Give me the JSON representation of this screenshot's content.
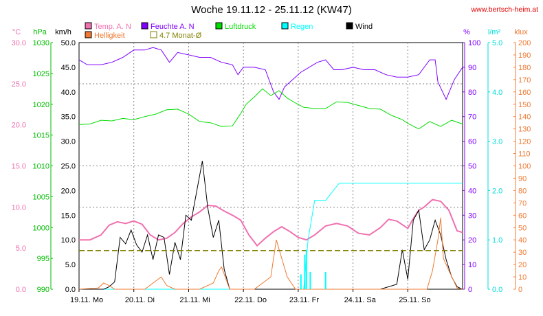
{
  "chart_data": {
    "type": "line",
    "title": "Woche 19.11.12 - 25.11.12 (KW47)",
    "source": "www.bertsch-heim.at",
    "legend": [
      {
        "name": "Temp. A. N",
        "color": "#f070b0",
        "style": "box"
      },
      {
        "name": "Feuchte A. N",
        "color": "#7f00ff",
        "style": "box"
      },
      {
        "name": "Luftdruck",
        "color": "#00dd00",
        "style": "box"
      },
      {
        "name": "Regen",
        "color": "#00ffff",
        "style": "box"
      },
      {
        "name": "Wind",
        "color": "#000000",
        "style": "box"
      },
      {
        "name": "Helligkeit",
        "color": "#f07830",
        "style": "box"
      },
      {
        "name": "4.7 Monat-Ø",
        "color": "#808000",
        "style": "outline"
      }
    ],
    "axes": {
      "temp": {
        "unit": "°C",
        "ticks": [
          "30.0",
          "25.0",
          "20.0",
          "15.0",
          "10.0",
          "5.0",
          "0.0"
        ],
        "min": 0,
        "max": 30,
        "color": "#f070b0"
      },
      "pressure": {
        "unit": "hPa",
        "ticks": [
          "1030",
          "1025",
          "1020",
          "1015",
          "1010",
          "1005",
          "1000",
          "995",
          "990"
        ],
        "min": 990,
        "max": 1030,
        "color": "#00bb00"
      },
      "wind": {
        "unit": "km/h",
        "ticks": [
          "50.0",
          "45.0",
          "40.0",
          "35.0",
          "30.0",
          "25.0",
          "20.0",
          "15.0",
          "10.0",
          "5.0",
          "0.0"
        ],
        "min": 0,
        "max": 50,
        "color": "#000000"
      },
      "humidity": {
        "unit": "%",
        "ticks": [
          "100",
          "90",
          "80",
          "70",
          "60",
          "50",
          "40",
          "30",
          "20",
          "10",
          "0"
        ],
        "min": 0,
        "max": 100,
        "color": "#7f00ff"
      },
      "rain": {
        "unit": "l/m²",
        "ticks": [
          "5.0",
          "4.0",
          "3.0",
          "2.0",
          "1.0",
          "0.0"
        ],
        "min": 0,
        "max": 5,
        "color": "#00dddd"
      },
      "light": {
        "unit": "klux",
        "ticks": [
          "200",
          "190",
          "180",
          "170",
          "160",
          "150",
          "140",
          "130",
          "120",
          "110",
          "100",
          "90",
          "80",
          "70",
          "60",
          "50",
          "40",
          "30",
          "20",
          "10",
          "0"
        ],
        "min": 0,
        "max": 200,
        "color": "#f07830"
      }
    },
    "x_labels": [
      "19.11. Mo",
      "20.11. Di",
      "21.11. Mi",
      "22.11. Do",
      "23.11. Fr",
      "24.11. Sa",
      "25.11. So"
    ],
    "x_range_days": [
      0,
      7
    ],
    "monthly_avg_temp": 4.7,
    "series": [
      {
        "name": "Temp. A. N",
        "axis": "temp",
        "x": [
          0,
          0.2,
          0.4,
          0.55,
          0.7,
          0.85,
          1.0,
          1.15,
          1.3,
          1.45,
          1.6,
          1.75,
          1.9,
          2.05,
          2.2,
          2.35,
          2.5,
          2.65,
          2.8,
          2.95,
          3.1,
          3.25,
          3.4,
          3.55,
          3.7,
          3.85,
          4.0,
          4.15,
          4.3,
          4.5,
          4.7,
          4.9,
          5.1,
          5.3,
          5.5,
          5.65,
          5.8,
          6.0,
          6.1,
          6.2,
          6.3,
          6.45,
          6.6,
          6.75,
          6.9,
          7.0
        ],
        "y": [
          6.0,
          6.0,
          6.6,
          7.8,
          8.2,
          8.0,
          8.3,
          7.9,
          6.6,
          6.0,
          6.2,
          6.9,
          8.0,
          8.8,
          9.4,
          10.2,
          10.1,
          9.5,
          9.0,
          8.4,
          6.6,
          5.3,
          6.2,
          7.0,
          7.6,
          7.0,
          6.3,
          6.0,
          6.6,
          7.7,
          8.0,
          7.7,
          6.8,
          6.6,
          7.5,
          8.5,
          8.3,
          7.4,
          8.6,
          9.6,
          10.0,
          10.9,
          10.7,
          9.6,
          7.1,
          6.9
        ]
      },
      {
        "name": "Feuchte A. N",
        "axis": "humidity",
        "x": [
          0,
          0.15,
          0.4,
          0.6,
          0.8,
          1.0,
          1.2,
          1.35,
          1.5,
          1.65,
          1.8,
          2.0,
          2.2,
          2.4,
          2.6,
          2.8,
          2.9,
          3.0,
          3.2,
          3.4,
          3.55,
          3.65,
          3.75,
          3.85,
          3.95,
          4.05,
          4.2,
          4.35,
          4.5,
          4.65,
          4.8,
          5.0,
          5.2,
          5.4,
          5.6,
          5.8,
          6.0,
          6.2,
          6.4,
          6.5,
          6.55,
          6.7,
          6.85,
          7.0
        ],
        "y": [
          93,
          91,
          91,
          92,
          94,
          97,
          97,
          98,
          97,
          92,
          96,
          95,
          94,
          94,
          92,
          91,
          87,
          90,
          90,
          89,
          80,
          77,
          82,
          84,
          86,
          88,
          90,
          92,
          93,
          89,
          89,
          90,
          89,
          89,
          87,
          86,
          86,
          87,
          93,
          93,
          84,
          77,
          85,
          90
        ]
      },
      {
        "name": "Luftdruck",
        "axis": "pressure",
        "x": [
          0,
          0.2,
          0.4,
          0.6,
          0.8,
          1.0,
          1.2,
          1.4,
          1.6,
          1.8,
          2.0,
          2.2,
          2.4,
          2.6,
          2.8,
          2.95,
          3.05,
          3.2,
          3.35,
          3.5,
          3.65,
          3.8,
          3.95,
          4.1,
          4.3,
          4.5,
          4.7,
          4.9,
          5.1,
          5.3,
          5.5,
          5.7,
          5.9,
          6.0,
          6.2,
          6.4,
          6.6,
          6.8,
          7.0
        ],
        "y": [
          1016.7,
          1016.8,
          1017.4,
          1017.3,
          1017.7,
          1017.5,
          1018.0,
          1018.4,
          1019.1,
          1019.2,
          1018.4,
          1017.2,
          1017.0,
          1016.4,
          1016.5,
          1018.5,
          1020.0,
          1021.2,
          1022.5,
          1021.4,
          1022.2,
          1021.0,
          1020.2,
          1019.5,
          1019.3,
          1019.3,
          1020.4,
          1020.3,
          1019.8,
          1019.3,
          1019.2,
          1018.2,
          1017.5,
          1016.9,
          1016.0,
          1017.2,
          1016.4,
          1017.4,
          1016.8
        ]
      },
      {
        "name": "Regen",
        "axis": "rain",
        "x": [
          0,
          4.1,
          4.18,
          4.3,
          4.5,
          4.75,
          5.0,
          6.0,
          7.0
        ],
        "y": [
          0,
          0,
          1.0,
          1.8,
          1.8,
          2.15,
          2.15,
          2.15,
          2.15
        ]
      },
      {
        "name": "Wind",
        "axis": "wind",
        "x": [
          0,
          0.45,
          0.55,
          0.65,
          0.75,
          0.85,
          0.95,
          1.05,
          1.15,
          1.25,
          1.35,
          1.45,
          1.55,
          1.65,
          1.75,
          1.85,
          1.95,
          2.05,
          2.15,
          2.25,
          2.35,
          2.45,
          2.55,
          2.65,
          2.75,
          2.85,
          3.0,
          3.5,
          4.0,
          4.5,
          5.0,
          5.5,
          5.8,
          5.9,
          6.0,
          6.1,
          6.2,
          6.3,
          6.4,
          6.5,
          6.6,
          6.7,
          6.8,
          6.9,
          7.0
        ],
        "y": [
          0,
          0,
          0.5,
          1.5,
          10.5,
          9.2,
          12.0,
          9.0,
          7.5,
          11.0,
          6.0,
          11.0,
          10.5,
          3.0,
          9.5,
          6.0,
          15.0,
          14.0,
          20.0,
          26.0,
          16.5,
          10.5,
          14.0,
          4.0,
          0,
          0,
          0,
          0,
          0,
          0,
          0,
          0,
          1.0,
          8.0,
          2.0,
          14.0,
          16.0,
          8.0,
          10.0,
          14.0,
          11.0,
          6.0,
          2.5,
          0.5,
          0
        ]
      },
      {
        "name": "Helligkeit",
        "axis": "light",
        "x": [
          0,
          0.35,
          0.45,
          0.55,
          0.65,
          1.2,
          1.35,
          1.5,
          1.6,
          1.75,
          2.2,
          2.45,
          2.55,
          2.6,
          2.75,
          3.2,
          3.5,
          3.6,
          3.7,
          3.8,
          3.95,
          4.2,
          4.5,
          5.0,
          5.5,
          5.9,
          6.1,
          6.35,
          6.45,
          6.55,
          6.6,
          6.65,
          6.75,
          6.9,
          7.0
        ],
        "y": [
          0,
          1,
          5,
          3,
          0,
          0,
          5,
          10,
          3,
          0,
          0,
          5,
          15,
          18,
          0,
          0,
          10,
          40,
          25,
          10,
          0,
          0,
          0,
          0,
          0,
          0,
          0,
          0,
          15,
          40,
          58,
          25,
          15,
          1,
          0
        ]
      },
      {
        "name": "4.7 Monat-Ø",
        "axis": "temp",
        "x": [
          0,
          7
        ],
        "y": [
          4.7,
          4.7
        ]
      }
    ]
  }
}
